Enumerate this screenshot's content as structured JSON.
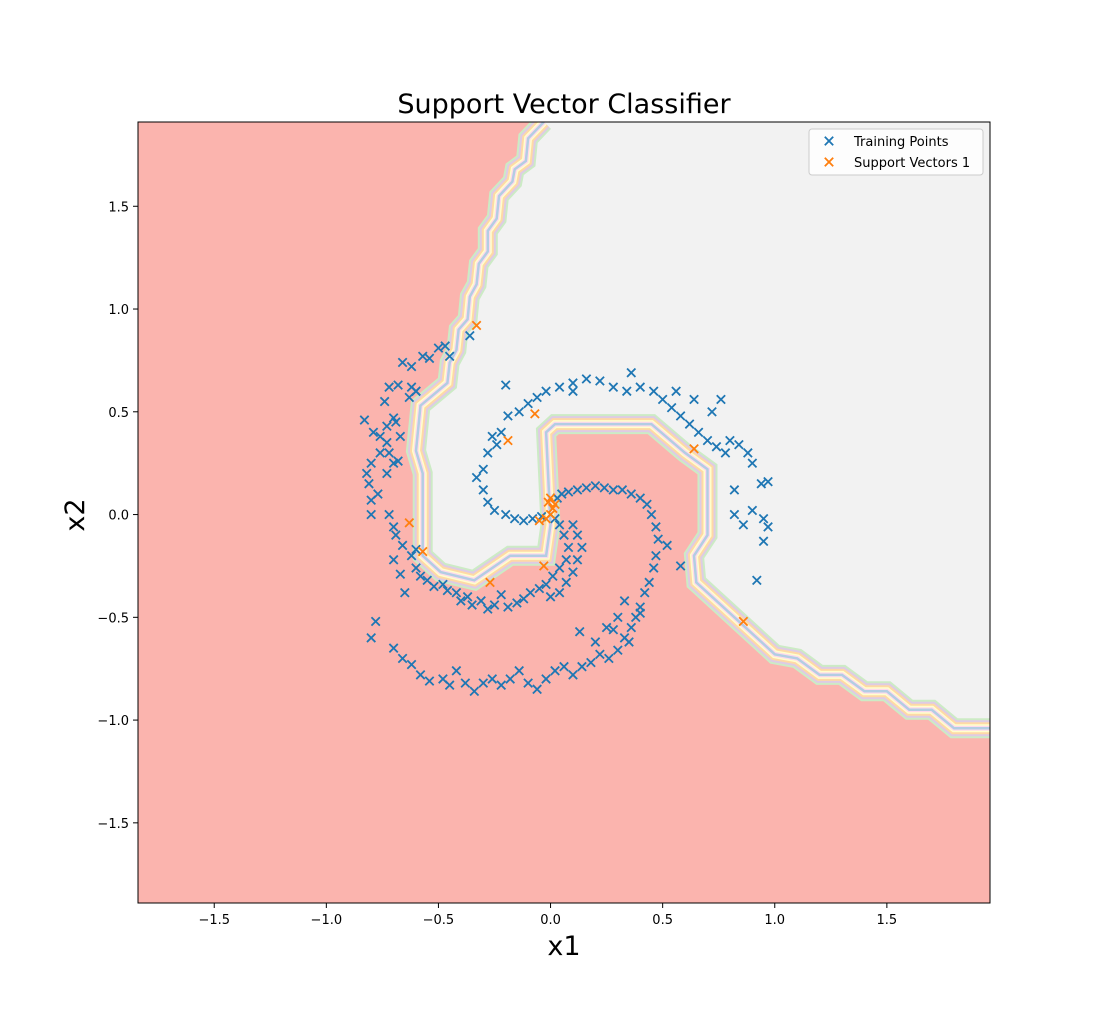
{
  "chart_data": {
    "type": "scatter",
    "title": "Support Vector Classifier",
    "xlabel": "x1",
    "ylabel": "x2",
    "xlim": [
      -1.84,
      1.96
    ],
    "ylim": [
      -1.89,
      1.91
    ],
    "x_ticks": [
      -1.5,
      -1.0,
      -0.5,
      0.0,
      0.5,
      1.0,
      1.5
    ],
    "y_ticks": [
      -1.5,
      -1.0,
      -0.5,
      0.0,
      0.5,
      1.0,
      1.5
    ],
    "x_tick_labels": [
      "−1.5",
      "−1.0",
      "−0.5",
      "0.0",
      "0.5",
      "1.0",
      "1.5"
    ],
    "y_tick_labels": [
      "−1.5",
      "−1.0",
      "−0.5",
      "0.0",
      "0.5",
      "1.0",
      "1.5"
    ],
    "grid": false,
    "legend_position": "top-right",
    "background_regions": {
      "class_0_color": "#fbb4ae",
      "class_1_color": "#f2f2f2",
      "boundary_band_colors": [
        "#ccebc5",
        "#decbe4",
        "#fed9a6",
        "#ffffcc",
        "#fddaec",
        "#b3cde3"
      ]
    },
    "decision_boundary": [
      [
        -0.03,
        1.91
      ],
      [
        -0.1,
        1.83
      ],
      [
        -0.11,
        1.72
      ],
      [
        -0.16,
        1.68
      ],
      [
        -0.17,
        1.62
      ],
      [
        -0.23,
        1.55
      ],
      [
        -0.24,
        1.44
      ],
      [
        -0.28,
        1.38
      ],
      [
        -0.28,
        1.28
      ],
      [
        -0.32,
        1.22
      ],
      [
        -0.33,
        1.12
      ],
      [
        -0.36,
        1.06
      ],
      [
        -0.37,
        0.95
      ],
      [
        -0.41,
        0.9
      ],
      [
        -0.42,
        0.8
      ],
      [
        -0.45,
        0.74
      ],
      [
        -0.46,
        0.64
      ],
      [
        -0.58,
        0.53
      ],
      [
        -0.6,
        0.31
      ],
      [
        -0.57,
        0.2
      ],
      [
        -0.57,
        -0.2
      ],
      [
        -0.49,
        -0.28
      ],
      [
        -0.34,
        -0.32
      ],
      [
        -0.18,
        -0.2
      ],
      [
        -0.02,
        -0.2
      ],
      [
        0.0,
        -0.05
      ],
      [
        -0.02,
        0.4
      ],
      [
        0.02,
        0.44
      ],
      [
        0.45,
        0.44
      ],
      [
        0.6,
        0.3
      ],
      [
        0.7,
        0.22
      ],
      [
        0.7,
        -0.1
      ],
      [
        0.64,
        -0.2
      ],
      [
        0.65,
        -0.33
      ],
      [
        1.0,
        -0.68
      ],
      [
        1.1,
        -0.7
      ],
      [
        1.2,
        -0.78
      ],
      [
        1.3,
        -0.78
      ],
      [
        1.4,
        -0.86
      ],
      [
        1.5,
        -0.86
      ],
      [
        1.6,
        -0.95
      ],
      [
        1.7,
        -0.95
      ],
      [
        1.8,
        -1.04
      ],
      [
        1.96,
        -1.04
      ]
    ],
    "series": [
      {
        "name": "Training Points",
        "color": "#1f77b4",
        "marker": "x",
        "points": [
          [
            -0.83,
            0.46
          ],
          [
            -0.79,
            0.4
          ],
          [
            -0.74,
            0.55
          ],
          [
            -0.72,
            0.62
          ],
          [
            -0.68,
            0.63
          ],
          [
            -0.66,
            0.74
          ],
          [
            -0.62,
            0.72
          ],
          [
            -0.6,
            0.6
          ],
          [
            -0.57,
            0.77
          ],
          [
            -0.54,
            0.76
          ],
          [
            -0.5,
            0.81
          ],
          [
            -0.47,
            0.82
          ],
          [
            -0.45,
            0.77
          ],
          [
            -0.36,
            0.87
          ],
          [
            -0.7,
            0.47
          ],
          [
            -0.73,
            0.43
          ],
          [
            -0.76,
            0.38
          ],
          [
            -0.69,
            0.45
          ],
          [
            -0.67,
            0.38
          ],
          [
            -0.6,
            0.6
          ],
          [
            -0.62,
            0.62
          ],
          [
            -0.63,
            0.57
          ],
          [
            -0.73,
            0.35
          ],
          [
            -0.76,
            0.3
          ],
          [
            -0.8,
            0.25
          ],
          [
            -0.82,
            0.2
          ],
          [
            -0.81,
            0.15
          ],
          [
            -0.77,
            0.1
          ],
          [
            -0.8,
            0.07
          ],
          [
            -0.8,
            0.0
          ],
          [
            -0.73,
            0.2
          ],
          [
            -0.7,
            0.25
          ],
          [
            -0.72,
            0.3
          ],
          [
            -0.68,
            0.26
          ],
          [
            -0.72,
            0.0
          ],
          [
            -0.7,
            -0.06
          ],
          [
            -0.69,
            -0.1
          ],
          [
            -0.66,
            -0.15
          ],
          [
            -0.62,
            -0.2
          ],
          [
            -0.6,
            -0.17
          ],
          [
            -0.6,
            -0.26
          ],
          [
            -0.58,
            -0.3
          ],
          [
            -0.55,
            -0.32
          ],
          [
            -0.52,
            -0.35
          ],
          [
            -0.48,
            -0.34
          ],
          [
            -0.46,
            -0.37
          ],
          [
            -0.42,
            -0.38
          ],
          [
            -0.4,
            -0.42
          ],
          [
            -0.37,
            -0.4
          ],
          [
            -0.35,
            -0.44
          ],
          [
            -0.31,
            -0.42
          ],
          [
            -0.28,
            -0.46
          ],
          [
            -0.25,
            -0.44
          ],
          [
            -0.22,
            -0.39
          ],
          [
            -0.19,
            -0.45
          ],
          [
            -0.15,
            -0.43
          ],
          [
            -0.12,
            -0.41
          ],
          [
            -0.09,
            -0.38
          ],
          [
            -0.05,
            -0.36
          ],
          [
            -0.02,
            -0.34
          ],
          [
            0.01,
            -0.3
          ],
          [
            0.04,
            -0.26
          ],
          [
            0.07,
            -0.22
          ],
          [
            0.08,
            -0.16
          ],
          [
            0.06,
            -0.1
          ],
          [
            0.04,
            -0.05
          ],
          [
            0.02,
            -0.02
          ],
          [
            -0.7,
            -0.22
          ],
          [
            -0.67,
            -0.29
          ],
          [
            -0.65,
            -0.38
          ],
          [
            -0.78,
            -0.52
          ],
          [
            -0.8,
            -0.6
          ],
          [
            -0.7,
            -0.65
          ],
          [
            -0.66,
            -0.7
          ],
          [
            -0.62,
            -0.73
          ],
          [
            -0.58,
            -0.78
          ],
          [
            -0.54,
            -0.81
          ],
          [
            -0.48,
            -0.8
          ],
          [
            -0.45,
            -0.83
          ],
          [
            -0.42,
            -0.76
          ],
          [
            -0.38,
            -0.82
          ],
          [
            -0.34,
            -0.86
          ],
          [
            -0.3,
            -0.82
          ],
          [
            -0.26,
            -0.8
          ],
          [
            -0.22,
            -0.83
          ],
          [
            -0.18,
            -0.8
          ],
          [
            -0.14,
            -0.76
          ],
          [
            -0.1,
            -0.82
          ],
          [
            -0.06,
            -0.85
          ],
          [
            -0.02,
            -0.8
          ],
          [
            0.02,
            -0.76
          ],
          [
            0.06,
            -0.74
          ],
          [
            0.1,
            -0.78
          ],
          [
            0.14,
            -0.74
          ],
          [
            0.18,
            -0.72
          ],
          [
            0.22,
            -0.68
          ],
          [
            0.26,
            -0.7
          ],
          [
            0.3,
            -0.66
          ],
          [
            0.33,
            -0.6
          ],
          [
            0.36,
            -0.55
          ],
          [
            0.38,
            -0.5
          ],
          [
            0.4,
            -0.45
          ],
          [
            0.42,
            -0.38
          ],
          [
            0.44,
            -0.33
          ],
          [
            0.46,
            -0.26
          ],
          [
            0.47,
            -0.2
          ],
          [
            0.48,
            -0.12
          ],
          [
            0.47,
            -0.06
          ],
          [
            0.45,
            0.0
          ],
          [
            0.43,
            0.05
          ],
          [
            0.4,
            0.08
          ],
          [
            0.36,
            0.1
          ],
          [
            0.32,
            0.12
          ],
          [
            0.28,
            0.12
          ],
          [
            0.24,
            0.13
          ],
          [
            0.2,
            0.14
          ],
          [
            0.16,
            0.13
          ],
          [
            0.12,
            0.12
          ],
          [
            0.08,
            0.11
          ],
          [
            0.05,
            0.1
          ],
          [
            0.03,
            0.08
          ],
          [
            0.1,
            -0.05
          ],
          [
            0.12,
            -0.1
          ],
          [
            0.14,
            -0.16
          ],
          [
            0.12,
            -0.22
          ],
          [
            0.1,
            -0.28
          ],
          [
            0.07,
            -0.33
          ],
          [
            0.04,
            -0.38
          ],
          [
            0.0,
            -0.4
          ],
          [
            0.52,
            -0.15
          ],
          [
            0.58,
            -0.25
          ],
          [
            0.33,
            -0.42
          ],
          [
            0.3,
            -0.5
          ],
          [
            0.25,
            -0.55
          ],
          [
            0.2,
            -0.62
          ],
          [
            0.13,
            -0.57
          ],
          [
            0.28,
            -0.56
          ],
          [
            0.35,
            -0.62
          ],
          [
            0.4,
            -0.48
          ],
          [
            -0.26,
            0.38
          ],
          [
            -0.22,
            0.4
          ],
          [
            -0.24,
            0.34
          ],
          [
            -0.28,
            0.3
          ],
          [
            -0.3,
            0.22
          ],
          [
            -0.33,
            0.18
          ],
          [
            -0.3,
            0.12
          ],
          [
            -0.28,
            0.06
          ],
          [
            -0.25,
            0.02
          ],
          [
            -0.2,
            0.0
          ],
          [
            -0.16,
            -0.02
          ],
          [
            -0.12,
            -0.03
          ],
          [
            -0.08,
            -0.02
          ],
          [
            -0.04,
            -0.01
          ],
          [
            -0.19,
            0.48
          ],
          [
            -0.14,
            0.5
          ],
          [
            -0.1,
            0.54
          ],
          [
            -0.06,
            0.57
          ],
          [
            -0.02,
            0.6
          ],
          [
            0.04,
            0.62
          ],
          [
            0.1,
            0.64
          ],
          [
            0.16,
            0.66
          ],
          [
            0.22,
            0.65
          ],
          [
            0.28,
            0.62
          ],
          [
            0.34,
            0.6
          ],
          [
            0.4,
            0.62
          ],
          [
            0.46,
            0.6
          ],
          [
            0.5,
            0.56
          ],
          [
            0.54,
            0.52
          ],
          [
            0.58,
            0.48
          ],
          [
            0.62,
            0.44
          ],
          [
            0.66,
            0.4
          ],
          [
            0.7,
            0.36
          ],
          [
            0.74,
            0.33
          ],
          [
            0.78,
            0.3
          ],
          [
            0.8,
            0.36
          ],
          [
            0.84,
            0.34
          ],
          [
            0.88,
            0.3
          ],
          [
            0.9,
            0.25
          ],
          [
            0.82,
            0.12
          ],
          [
            0.9,
            0.02
          ],
          [
            0.95,
            -0.02
          ],
          [
            0.97,
            -0.06
          ],
          [
            0.95,
            -0.13
          ],
          [
            0.92,
            -0.32
          ],
          [
            0.86,
            -0.05
          ],
          [
            0.82,
            0.0
          ],
          [
            0.94,
            0.15
          ],
          [
            0.97,
            0.16
          ],
          [
            0.72,
            0.5
          ],
          [
            0.76,
            0.56
          ],
          [
            0.64,
            0.56
          ],
          [
            0.56,
            0.6
          ],
          [
            -0.2,
            0.63
          ],
          [
            0.1,
            0.6
          ],
          [
            0.36,
            0.69
          ]
        ]
      },
      {
        "name": "Support Vectors 1",
        "color": "#ff7f0e",
        "marker": "x",
        "points": [
          [
            -0.33,
            0.92
          ],
          [
            -0.63,
            -0.04
          ],
          [
            -0.57,
            -0.18
          ],
          [
            -0.27,
            -0.33
          ],
          [
            -0.19,
            0.36
          ],
          [
            -0.07,
            0.49
          ],
          [
            -0.03,
            -0.25
          ],
          [
            -0.05,
            -0.03
          ],
          [
            -0.02,
            -0.02
          ],
          [
            0.0,
            0.0
          ],
          [
            0.01,
            0.03
          ],
          [
            0.02,
            0.05
          ],
          [
            -0.01,
            0.06
          ],
          [
            0.0,
            0.08
          ],
          [
            0.64,
            0.32
          ],
          [
            0.86,
            -0.52
          ]
        ]
      }
    ]
  }
}
